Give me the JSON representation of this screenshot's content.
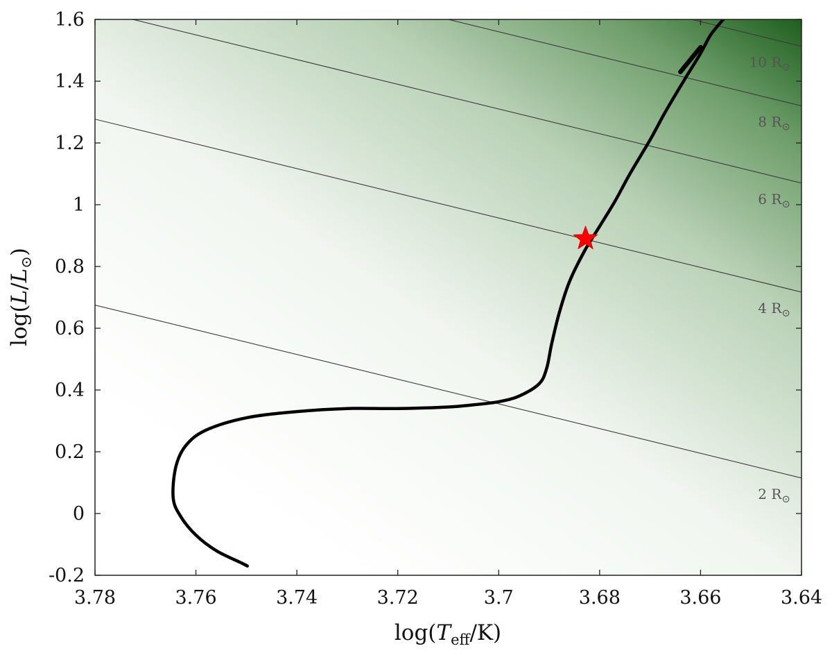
{
  "chart_data": {
    "type": "line",
    "xlabel": "log(T_eff/K)",
    "ylabel": "log(L/L_⊙)",
    "xlim": [
      3.78,
      3.64
    ],
    "ylim": [
      -0.2,
      1.6
    ],
    "x_reversed": true,
    "grid": false,
    "x_ticks": [
      "3.78",
      "3.76",
      "3.74",
      "3.72",
      "3.7",
      "3.68",
      "3.66",
      "3.64"
    ],
    "y_ticks": [
      "-0.2",
      "0",
      "0.2",
      "0.4",
      "0.6",
      "0.8",
      "1",
      "1.2",
      "1.4",
      "1.6"
    ],
    "background_colormap": [
      "#ffffff",
      "#1e5f1e"
    ],
    "series": [
      {
        "color": "#000000",
        "x": [
          3.7498,
          3.751,
          3.756,
          3.76,
          3.763,
          3.7645,
          3.764,
          3.762,
          3.758,
          3.75,
          3.74,
          3.73,
          3.72,
          3.71,
          3.705,
          3.7,
          3.696,
          3.692,
          3.6905,
          3.6895,
          3.688,
          3.686,
          3.683,
          3.68,
          3.677,
          3.674,
          3.67,
          3.667,
          3.663,
          3.66,
          3.658,
          3.6555
        ],
        "y": [
          -0.17,
          -0.16,
          -0.12,
          -0.07,
          -0.01,
          0.05,
          0.15,
          0.22,
          0.27,
          0.31,
          0.33,
          0.34,
          0.34,
          0.345,
          0.352,
          0.362,
          0.38,
          0.42,
          0.47,
          0.55,
          0.65,
          0.75,
          0.85,
          0.93,
          1.01,
          1.1,
          1.21,
          1.3,
          1.41,
          1.49,
          1.55,
          1.6
        ]
      },
      {
        "color": "#000000",
        "x": [
          3.664,
          3.66
        ],
        "y": [
          1.43,
          1.51
        ]
      }
    ],
    "radius_lines": [
      {
        "label": "2 R_⊙",
        "x": [
          3.78,
          3.64
        ],
        "y": [
          0.675,
          0.115
        ]
      },
      {
        "label": "4 R_⊙",
        "x": [
          3.78,
          3.64
        ],
        "y": [
          1.277,
          0.717
        ]
      },
      {
        "label": "6 R_⊙",
        "x": [
          3.78,
          3.64
        ],
        "y": [
          1.63,
          1.07
        ]
      },
      {
        "label": "8 R_⊙",
        "x": [
          3.78,
          3.64
        ],
        "y": [
          1.88,
          1.32
        ]
      },
      {
        "label": "10 R_⊙",
        "x": [
          3.78,
          3.64
        ],
        "y": [
          2.073,
          1.513
        ]
      }
    ],
    "annotations": [
      {
        "type": "star",
        "color": "#ff0000",
        "x": 3.6828,
        "y": 0.89
      }
    ]
  }
}
